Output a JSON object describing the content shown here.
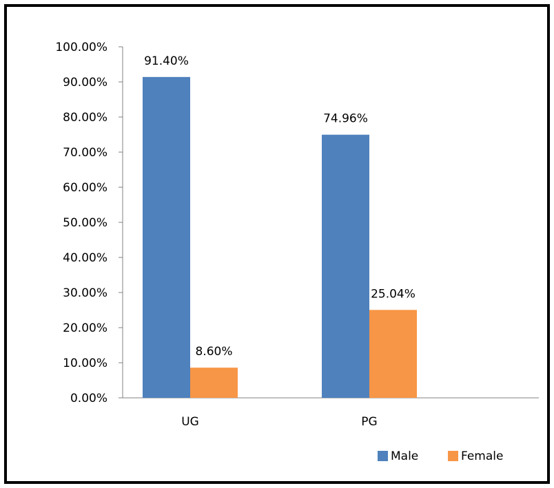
{
  "chart_data": {
    "type": "bar",
    "categories": [
      "UG",
      "PG"
    ],
    "series": [
      {
        "name": "Male",
        "values": [
          91.4,
          74.96
        ],
        "labels": [
          "91.40%",
          "74.96%"
        ],
        "color": "#4F81BD"
      },
      {
        "name": "Female",
        "values": [
          8.6,
          25.04
        ],
        "labels": [
          "8.60%",
          "25.04%"
        ],
        "color": "#F79646"
      }
    ],
    "title": "",
    "xlabel": "",
    "ylabel": "",
    "ylim": [
      0,
      100
    ],
    "yticks": [
      "0.00%",
      "10.00%",
      "20.00%",
      "30.00%",
      "40.00%",
      "50.00%",
      "60.00%",
      "70.00%",
      "80.00%",
      "90.00%",
      "100.00%"
    ],
    "grid": false,
    "legend_position": "bottom-right"
  }
}
